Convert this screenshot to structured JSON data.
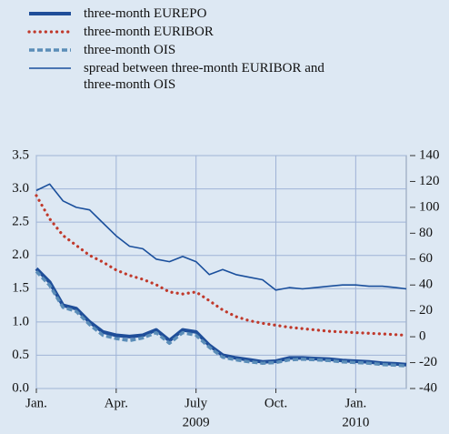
{
  "chart_data": {
    "type": "line",
    "x": [
      0,
      0.5,
      1,
      1.5,
      2,
      2.5,
      3,
      3.5,
      4,
      4.5,
      5,
      5.5,
      6,
      6.5,
      7,
      7.5,
      8,
      8.5,
      9,
      9.5,
      10,
      10.5,
      11,
      11.5,
      12,
      12.5,
      13,
      13.5,
      13.9
    ],
    "xlim": [
      0,
      13.9
    ],
    "xticks": [
      {
        "value": 0,
        "label": "Jan."
      },
      {
        "value": 3,
        "label": "Apr."
      },
      {
        "value": 6,
        "label": "July"
      },
      {
        "value": 9,
        "label": "Oct."
      },
      {
        "value": 12,
        "label": "Jan."
      }
    ],
    "x_year_labels": [
      {
        "value": 6,
        "label": "2009"
      },
      {
        "value": 12,
        "label": "2010"
      }
    ],
    "ylim": [
      0,
      3.5
    ],
    "yticks": [
      {
        "value": 0,
        "label": "0.0"
      },
      0.5,
      {
        "value": 1,
        "label": "1.0"
      },
      1.5,
      {
        "value": 2,
        "label": "2.0"
      },
      2.5,
      {
        "value": 3,
        "label": "3.0"
      },
      3.5
    ],
    "y2lim": [
      -40,
      140
    ],
    "y2ticks": [
      -40,
      -20,
      0,
      20,
      40,
      60,
      80,
      100,
      120,
      140
    ],
    "grid": true,
    "series": [
      {
        "name": "three-month EUREPO",
        "color": "#1f4e99",
        "style": "thick",
        "values": [
          1.8,
          1.6,
          1.25,
          1.2,
          1.0,
          0.85,
          0.8,
          0.78,
          0.8,
          0.88,
          0.72,
          0.88,
          0.85,
          0.65,
          0.5,
          0.46,
          0.43,
          0.4,
          0.41,
          0.46,
          0.46,
          0.45,
          0.44,
          0.42,
          0.41,
          0.4,
          0.38,
          0.37,
          0.36
        ]
      },
      {
        "name": "three-month EURIBOR",
        "color": "#c0392b",
        "style": "dotted",
        "values": [
          2.9,
          2.55,
          2.3,
          2.15,
          2.0,
          1.9,
          1.78,
          1.7,
          1.64,
          1.56,
          1.45,
          1.42,
          1.45,
          1.32,
          1.18,
          1.08,
          1.02,
          0.98,
          0.95,
          0.92,
          0.9,
          0.88,
          0.86,
          0.85,
          0.84,
          0.83,
          0.82,
          0.81,
          0.8
        ]
      },
      {
        "name": "three-month OIS",
        "color": "#5b8db8",
        "style": "dashed",
        "values": [
          1.76,
          1.55,
          1.22,
          1.16,
          0.96,
          0.8,
          0.75,
          0.72,
          0.76,
          0.84,
          0.68,
          0.84,
          0.8,
          0.62,
          0.47,
          0.43,
          0.4,
          0.38,
          0.39,
          0.43,
          0.44,
          0.43,
          0.42,
          0.4,
          0.39,
          0.38,
          0.36,
          0.35,
          0.34
        ]
      },
      {
        "name": "spread between three-month EURIBOR and three-month OIS",
        "color": "#1a4f9c",
        "style": "thin",
        "axis": "y2",
        "values": [
          113,
          118,
          105,
          100,
          98,
          88,
          78,
          70,
          68,
          60,
          58,
          62,
          58,
          48,
          52,
          48,
          46,
          44,
          36,
          38,
          37,
          38,
          39,
          40,
          40,
          39,
          39,
          38,
          37
        ]
      }
    ]
  }
}
